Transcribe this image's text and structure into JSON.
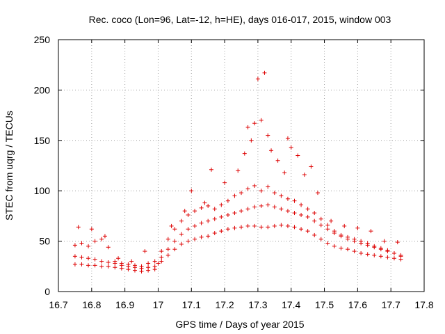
{
  "chart_data": {
    "type": "scatter",
    "title": "Rec. coco (Lon=96, Lat=-12, h=HE), days 016-017, 2015, window 003",
    "xlabel": "GPS time / Days of year 2015",
    "ylabel": "STEC from uqrg / TECUs",
    "xlim": [
      16.7,
      17.8
    ],
    "ylim": [
      0,
      250
    ],
    "xticks": [
      "16.7",
      "16.8",
      "16.9",
      "17",
      "17.1",
      "17.2",
      "17.3",
      "17.4",
      "17.5",
      "17.6",
      "17.7",
      "17.8"
    ],
    "yticks": [
      "0",
      "50",
      "100",
      "150",
      "200",
      "250"
    ],
    "grid": true,
    "marker": "+",
    "color": "#dd0000",
    "series": [
      {
        "x": [
          16.75,
          16.77,
          16.79,
          16.81,
          16.83,
          16.85,
          16.87,
          16.89,
          16.91,
          16.93,
          16.95,
          16.97,
          16.99,
          17.01,
          17.03,
          17.05,
          17.07,
          17.09,
          17.11,
          17.13,
          17.15,
          17.17,
          17.19,
          17.21,
          17.23,
          17.25,
          17.27,
          17.29,
          17.31,
          17.33,
          17.35,
          17.37,
          17.39,
          17.41,
          17.43,
          17.45,
          17.47,
          17.49,
          17.51,
          17.53,
          17.55,
          17.57,
          17.59,
          17.61,
          17.63,
          17.65,
          17.67,
          17.69,
          17.71,
          17.73
        ],
        "y": [
          27,
          27,
          26,
          26,
          25,
          25,
          24,
          23,
          22,
          21,
          20,
          21,
          22,
          30,
          36,
          42,
          47,
          50,
          52,
          54,
          55,
          58,
          60,
          62,
          63,
          64,
          65,
          65,
          64,
          64,
          65,
          66,
          65,
          64,
          62,
          60,
          56,
          52,
          48,
          45,
          43,
          42,
          40,
          38,
          37,
          36,
          35,
          34,
          33,
          32
        ]
      },
      {
        "x": [
          16.75,
          16.77,
          16.79,
          16.81,
          16.83,
          16.85,
          16.87,
          16.89,
          16.91,
          16.93,
          16.95,
          16.97,
          16.99,
          17.01,
          17.03,
          17.05,
          17.07,
          17.09,
          17.11,
          17.13,
          17.15,
          17.17,
          17.19,
          17.21,
          17.23,
          17.25,
          17.27,
          17.29,
          17.31,
          17.33,
          17.35,
          17.37,
          17.39,
          17.41,
          17.43,
          17.45,
          17.47,
          17.49,
          17.51,
          17.53,
          17.55,
          17.57,
          17.59,
          17.61,
          17.63,
          17.65,
          17.67,
          17.69,
          17.71,
          17.73
        ],
        "y": [
          35,
          34,
          33,
          32,
          30,
          29,
          28,
          26,
          25,
          24,
          23,
          24,
          25,
          34,
          42,
          50,
          57,
          62,
          65,
          68,
          70,
          72,
          74,
          76,
          78,
          80,
          82,
          84,
          85,
          86,
          84,
          82,
          80,
          78,
          76,
          74,
          70,
          66,
          62,
          58,
          55,
          52,
          50,
          48,
          46,
          44,
          42,
          40,
          38,
          36
        ]
      },
      {
        "x": [
          16.75,
          16.77,
          16.79,
          16.81,
          16.83,
          16.85,
          16.87,
          16.89,
          16.91,
          16.93,
          16.95,
          16.97,
          16.99,
          17.01,
          17.03,
          17.05,
          17.07,
          17.09,
          17.11,
          17.13,
          17.15,
          17.17,
          17.19,
          17.21,
          17.23,
          17.25,
          17.27,
          17.29,
          17.31,
          17.33,
          17.35,
          17.37,
          17.39,
          17.41,
          17.43,
          17.45,
          17.47,
          17.49,
          17.51,
          17.53,
          17.55,
          17.57,
          17.59,
          17.61,
          17.63,
          17.65,
          17.67,
          17.69,
          17.71,
          17.73
        ],
        "y": [
          46,
          48,
          45,
          50,
          52,
          44,
          30,
          28,
          27,
          26,
          25,
          28,
          30,
          40,
          52,
          62,
          70,
          76,
          80,
          83,
          85,
          82,
          86,
          90,
          95,
          98,
          102,
          105,
          100,
          104,
          98,
          95,
          92,
          90,
          86,
          82,
          78,
          72,
          66,
          60,
          56,
          54,
          52,
          50,
          48,
          45,
          43,
          41,
          38,
          35
        ]
      },
      {
        "x": [
          16.76,
          16.8,
          16.84,
          16.88,
          16.92,
          16.96,
          17.0,
          17.04,
          17.08,
          17.1,
          17.14,
          17.16,
          17.2,
          17.24,
          17.26,
          17.27,
          17.28,
          17.29,
          17.3,
          17.31,
          17.32,
          17.33,
          17.34,
          17.36,
          17.38,
          17.39,
          17.4,
          17.42,
          17.44,
          17.46,
          17.48,
          17.52,
          17.56,
          17.6,
          17.64,
          17.68,
          17.72
        ],
        "y": [
          64,
          62,
          55,
          33,
          30,
          40,
          28,
          65,
          80,
          100,
          88,
          121,
          108,
          120,
          137,
          163,
          150,
          167,
          211,
          170,
          217,
          155,
          140,
          130,
          118,
          152,
          143,
          135,
          116,
          124,
          98,
          70,
          65,
          63,
          60,
          50,
          49
        ]
      }
    ]
  }
}
